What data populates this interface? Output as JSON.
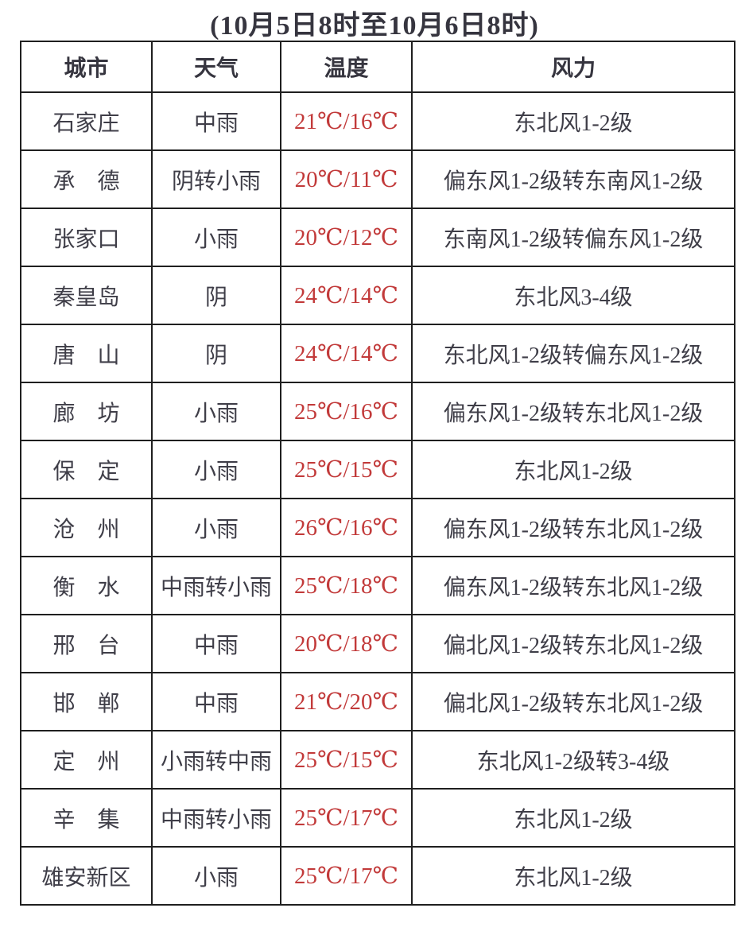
{
  "page": {
    "title": "(10月5日8时至10月6日8时)"
  },
  "colors": {
    "temperature_red": "#c23a3a",
    "body_text": "#3f3e48",
    "border": "#1f1f1f",
    "background": "#ffffff"
  },
  "table": {
    "headers": {
      "city": "城市",
      "weather": "天气",
      "temperature": "温度",
      "wind": "风力"
    },
    "rows": [
      {
        "city": "石家庄",
        "weather": "中雨",
        "temperature": "21℃/16℃",
        "wind": "东北风1-2级"
      },
      {
        "city": "承　德",
        "weather": "阴转小雨",
        "temperature": "20℃/11℃",
        "wind": "偏东风1-2级转东南风1-2级"
      },
      {
        "city": "张家口",
        "weather": "小雨",
        "temperature": "20℃/12℃",
        "wind": "东南风1-2级转偏东风1-2级"
      },
      {
        "city": "秦皇岛",
        "weather": "阴",
        "temperature": "24℃/14℃",
        "wind": "东北风3-4级"
      },
      {
        "city": "唐　山",
        "weather": "阴",
        "temperature": "24℃/14℃",
        "wind": "东北风1-2级转偏东风1-2级"
      },
      {
        "city": "廊　坊",
        "weather": "小雨",
        "temperature": "25℃/16℃",
        "wind": "偏东风1-2级转东北风1-2级"
      },
      {
        "city": "保　定",
        "weather": "小雨",
        "temperature": "25℃/15℃",
        "wind": "东北风1-2级"
      },
      {
        "city": "沧　州",
        "weather": "小雨",
        "temperature": "26℃/16℃",
        "wind": "偏东风1-2级转东北风1-2级"
      },
      {
        "city": "衡　水",
        "weather": "中雨转小雨",
        "temperature": "25℃/18℃",
        "wind": "偏东风1-2级转东北风1-2级"
      },
      {
        "city": "邢　台",
        "weather": "中雨",
        "temperature": "20℃/18℃",
        "wind": "偏北风1-2级转东北风1-2级"
      },
      {
        "city": "邯　郸",
        "weather": "中雨",
        "temperature": "21℃/20℃",
        "wind": "偏北风1-2级转东北风1-2级"
      },
      {
        "city": "定　州",
        "weather": "小雨转中雨",
        "temperature": "25℃/15℃",
        "wind": "东北风1-2级转3-4级"
      },
      {
        "city": "辛　集",
        "weather": "中雨转小雨",
        "temperature": "25℃/17℃",
        "wind": "东北风1-2级"
      },
      {
        "city": "雄安新区",
        "weather": "小雨",
        "temperature": "25℃/17℃",
        "wind": "东北风1-2级"
      }
    ]
  }
}
